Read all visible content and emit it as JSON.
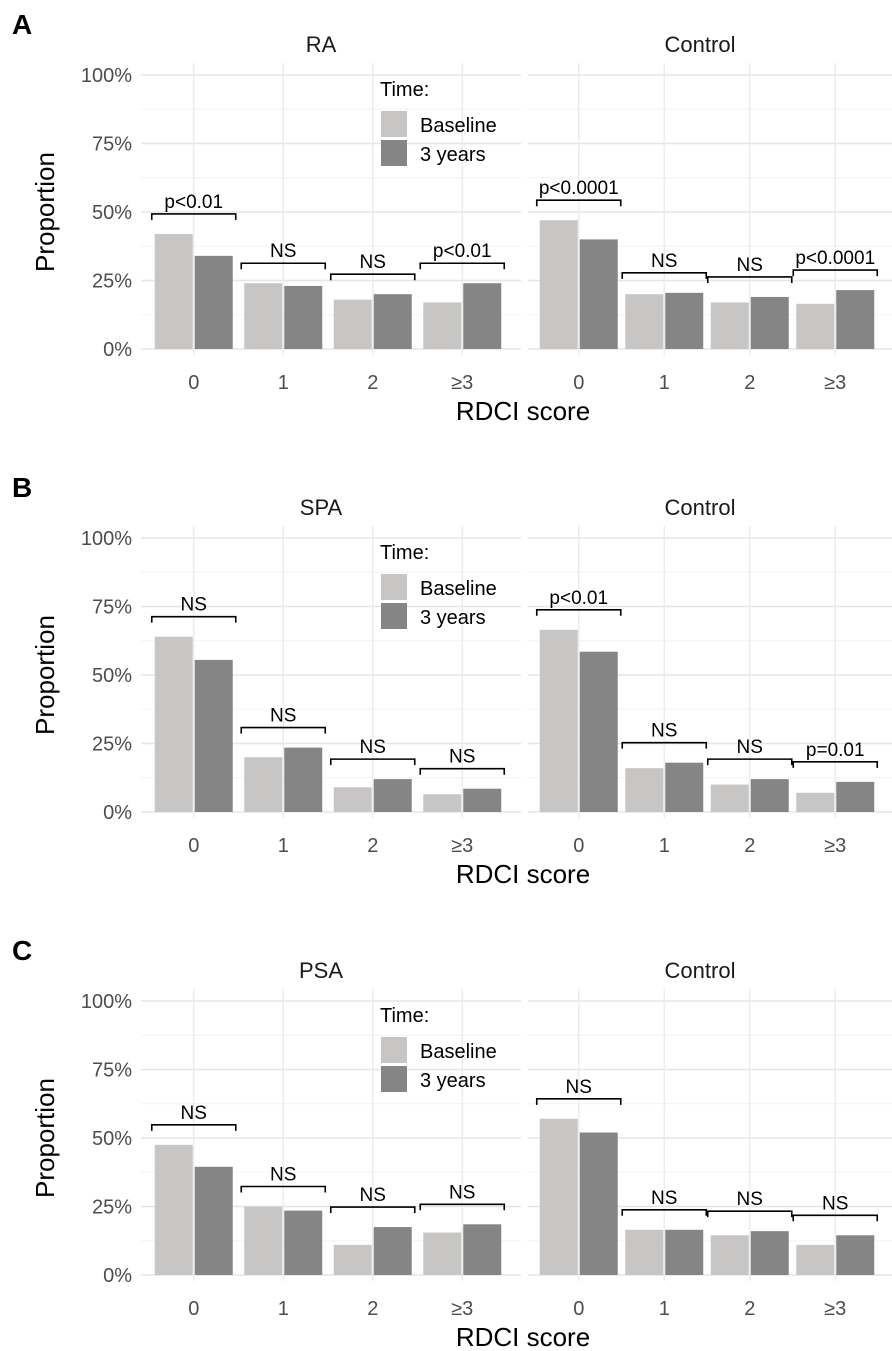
{
  "chart_data": {
    "type": "bar",
    "x_categories": [
      "0",
      "1",
      "2",
      "≥3"
    ],
    "xlabel": "RDCI score",
    "ylabel": "Proportion",
    "ylim": [
      0,
      1
    ],
    "y_ticks": [
      "0%",
      "25%",
      "50%",
      "75%",
      "100%"
    ],
    "legend": {
      "title": "Time:",
      "placement": "top-right of left facet",
      "entries": [
        {
          "name": "Baseline",
          "color": "#c8c5c5"
        },
        {
          "name": "3 years",
          "color": "#858585"
        }
      ]
    },
    "grid": true,
    "rows": [
      {
        "label": "A",
        "facets": [
          {
            "title": "RA",
            "series": [
              {
                "name": "Baseline",
                "values": [
                  0.42,
                  0.24,
                  0.18,
                  0.17
                ]
              },
              {
                "name": "3 years",
                "values": [
                  0.34,
                  0.23,
                  0.2,
                  0.24
                ]
              }
            ],
            "annotations": [
              "p<0.01",
              "NS",
              "NS",
              "p<0.01"
            ]
          },
          {
            "title": "Control",
            "series": [
              {
                "name": "Baseline",
                "values": [
                  0.47,
                  0.2,
                  0.17,
                  0.165
                ]
              },
              {
                "name": "3 years",
                "values": [
                  0.4,
                  0.205,
                  0.19,
                  0.215
                ]
              }
            ],
            "annotations": [
              "p<0.0001",
              "NS",
              "NS",
              "p<0.0001"
            ]
          }
        ]
      },
      {
        "label": "B",
        "facets": [
          {
            "title": "SPA",
            "series": [
              {
                "name": "Baseline",
                "values": [
                  0.64,
                  0.2,
                  0.09,
                  0.065
                ]
              },
              {
                "name": "3 years",
                "values": [
                  0.555,
                  0.235,
                  0.12,
                  0.085
                ]
              }
            ],
            "annotations": [
              "NS",
              "NS",
              "NS",
              "NS"
            ]
          },
          {
            "title": "Control",
            "series": [
              {
                "name": "Baseline",
                "values": [
                  0.665,
                  0.16,
                  0.1,
                  0.07
                ]
              },
              {
                "name": "3 years",
                "values": [
                  0.585,
                  0.18,
                  0.12,
                  0.11
                ]
              }
            ],
            "annotations": [
              "p<0.01",
              "NS",
              "NS",
              "p=0.01"
            ]
          }
        ]
      },
      {
        "label": "C",
        "facets": [
          {
            "title": "PSA",
            "series": [
              {
                "name": "Baseline",
                "values": [
                  0.475,
                  0.25,
                  0.11,
                  0.155
                ]
              },
              {
                "name": "3 years",
                "values": [
                  0.395,
                  0.235,
                  0.175,
                  0.185
                ]
              }
            ],
            "annotations": [
              "NS",
              "NS",
              "NS",
              "NS"
            ]
          },
          {
            "title": "Control",
            "series": [
              {
                "name": "Baseline",
                "values": [
                  0.57,
                  0.165,
                  0.145,
                  0.11
                ]
              },
              {
                "name": "3 years",
                "values": [
                  0.52,
                  0.165,
                  0.16,
                  0.145
                ]
              }
            ],
            "annotations": [
              "NS",
              "NS",
              "NS",
              "NS"
            ]
          }
        ]
      }
    ]
  }
}
